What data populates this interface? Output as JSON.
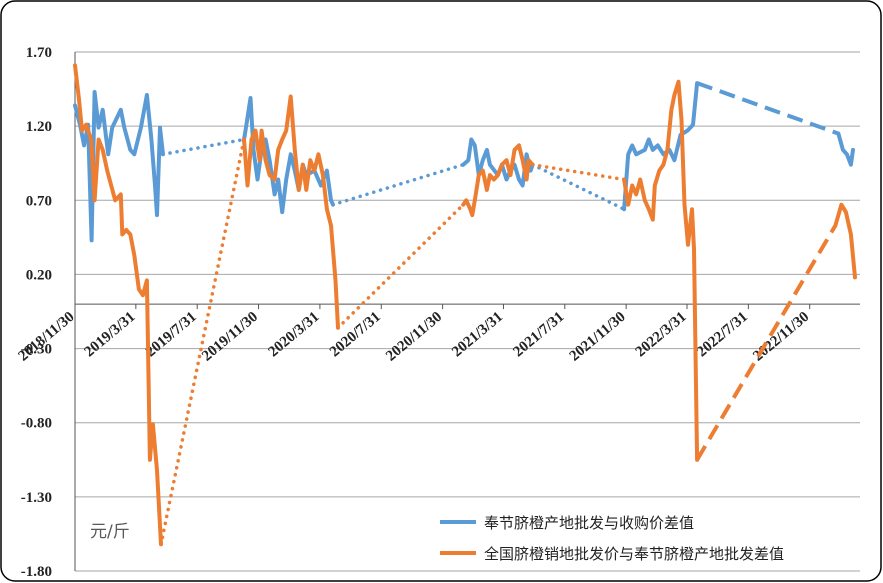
{
  "chart_data": {
    "type": "line",
    "y_label": "元/斤",
    "ylim": [
      -1.8,
      1.7
    ],
    "yticks": [
      {
        "value": 1.7,
        "label": "1.70"
      },
      {
        "value": 1.2,
        "label": "1.20"
      },
      {
        "value": 0.7,
        "label": "0.70"
      },
      {
        "value": 0.2,
        "label": "0.20"
      },
      {
        "value": -0.3,
        "label": "-0.30"
      },
      {
        "value": -0.8,
        "label": "-0.80"
      },
      {
        "value": -1.3,
        "label": "-1.30"
      },
      {
        "value": -1.8,
        "label": "-1.80"
      }
    ],
    "xlim": [
      "2018/11/30",
      "2023/3/10"
    ],
    "xticks": [
      "2018/11/30",
      "2019/3/31",
      "2019/7/31",
      "2019/11/30",
      "2020/3/31",
      "2020/7/31",
      "2020/11/30",
      "2021/3/31",
      "2021/7/31",
      "2021/11/30",
      "2022/3/31",
      "2022/7/31",
      "2022/11/30"
    ],
    "grid": true,
    "legend": "lower right",
    "series": [
      {
        "name": "奉节脐橙产地批发与收购价差值",
        "color": "#5b9bd5",
        "x": [
          "2018/11/30",
          "2018/12/10",
          "2018/12/18",
          "2018/12/26",
          "2019/1/2",
          "2019/1/8",
          "2019/1/16",
          "2019/1/24",
          "2019/2/4",
          "2019/2/12",
          "2019/3/1",
          "2019/3/8",
          "2019/3/20",
          "2019/3/28",
          "2019/4/10",
          "2019/4/22",
          "2019/5/1",
          "2019/5/8",
          "2019/5/12",
          "2019/5/18",
          "2019/5/24",
          "2019/11/1",
          "2019/11/4",
          "2019/11/14",
          "2019/11/20",
          "2019/11/28",
          "2019/12/6",
          "2019/12/14",
          "2019/12/22",
          "2020/1/1",
          "2020/1/8",
          "2020/1/16",
          "2020/1/24",
          "2020/2/2",
          "2020/2/10",
          "2020/2/18",
          "2020/2/26",
          "2020/3/4",
          "2020/3/20",
          "2020/4/2",
          "2020/4/14",
          "2020/4/22",
          "2020/4/26",
          "2021/1/10",
          "2021/1/20",
          "2021/1/26",
          "2021/2/2",
          "2021/2/10",
          "2021/2/18",
          "2021/2/26",
          "2021/3/4",
          "2021/3/20",
          "2021/3/28",
          "2021/4/6",
          "2021/4/14",
          "2021/4/22",
          "2021/5/1",
          "2021/5/8",
          "2021/5/16",
          "2021/5/24",
          "2021/5/28",
          "2021/11/26",
          "2021/12/4",
          "2021/12/12",
          "2021/12/20",
          "2022/1/6",
          "2022/1/14",
          "2022/1/22",
          "2022/2/1",
          "2022/2/12",
          "2022/2/24",
          "2022/3/6",
          "2022/3/18",
          "2022/4/1",
          "2022/4/12",
          "2022/4/20",
          "2023/1/26",
          "2023/2/4",
          "2023/2/12",
          "2023/2/20",
          "2023/2/24"
        ],
        "values": [
          1.34,
          1.21,
          1.07,
          1.21,
          0.43,
          1.43,
          1.19,
          1.31,
          1.01,
          1.19,
          1.31,
          1.19,
          1.04,
          1.01,
          1.19,
          1.41,
          1.11,
          0.8,
          0.6,
          1.19,
          1.01,
          1.11,
          1.17,
          1.39,
          1.04,
          0.84,
          1.04,
          1.11,
          0.97,
          0.74,
          0.84,
          0.62,
          0.84,
          1.01,
          0.9,
          0.77,
          0.94,
          0.87,
          0.9,
          0.8,
          0.9,
          0.7,
          0.67,
          0.94,
          0.97,
          1.11,
          1.07,
          0.87,
          0.97,
          1.04,
          0.94,
          0.87,
          0.94,
          0.84,
          0.9,
          0.94,
          0.84,
          0.8,
          1.01,
          0.9,
          0.94,
          0.64,
          1.01,
          1.07,
          1.01,
          1.04,
          1.11,
          1.04,
          1.07,
          1.01,
          1.04,
          0.97,
          1.14,
          1.17,
          1.21,
          1.49,
          1.15,
          1.04,
          1.01,
          0.94,
          1.04
        ],
        "line_styles": [
          "solid",
          "solid",
          "solid",
          "solid",
          "solid",
          "solid",
          "solid",
          "solid",
          "solid",
          "solid",
          "solid",
          "solid",
          "solid",
          "solid",
          "solid",
          "solid",
          "solid",
          "solid",
          "solid",
          "solid",
          "dotted",
          "solid",
          "solid",
          "solid",
          "solid",
          "solid",
          "solid",
          "solid",
          "solid",
          "solid",
          "solid",
          "solid",
          "solid",
          "solid",
          "solid",
          "solid",
          "solid",
          "solid",
          "solid",
          "solid",
          "solid",
          "solid",
          "dotted",
          "solid",
          "solid",
          "solid",
          "solid",
          "solid",
          "solid",
          "solid",
          "solid",
          "solid",
          "solid",
          "solid",
          "solid",
          "solid",
          "solid",
          "solid",
          "solid",
          "solid",
          "dotted",
          "solid",
          "solid",
          "solid",
          "solid",
          "solid",
          "solid",
          "solid",
          "solid",
          "solid",
          "solid",
          "solid",
          "solid",
          "solid",
          "solid",
          "dashed",
          "solid",
          "solid",
          "solid",
          "solid",
          "solid"
        ]
      },
      {
        "name": "全国脐橙销地批发价与奉节脐橙产地批发差值",
        "color": "#ed7d31",
        "x": [
          "2018/11/30",
          "2018/12/8",
          "2018/12/14",
          "2018/12/22",
          "2019/1/1",
          "2019/1/8",
          "2019/1/16",
          "2019/1/24",
          "2019/2/2",
          "2019/2/10",
          "2019/2/18",
          "2019/3/1",
          "2019/3/4",
          "2019/3/12",
          "2019/3/20",
          "2019/3/28",
          "2019/4/6",
          "2019/4/14",
          "2019/4/22",
          "2019/4/28",
          "2019/5/4",
          "2019/5/12",
          "2019/5/20",
          "2019/11/1",
          "2019/11/8",
          "2019/11/16",
          "2019/11/24",
          "2019/12/2",
          "2019/12/6",
          "2019/12/14",
          "2019/12/22",
          "2020/1/1",
          "2020/1/8",
          "2020/1/16",
          "2020/1/24",
          "2020/2/2",
          "2020/2/10",
          "2020/2/18",
          "2020/2/26",
          "2020/3/4",
          "2020/3/12",
          "2020/3/20",
          "2020/3/28",
          "2020/4/6",
          "2020/4/14",
          "2020/4/22",
          "2020/5/1",
          "2020/5/6",
          "2021/1/10",
          "2021/1/16",
          "2021/1/24",
          "2021/1/28",
          "2021/2/2",
          "2021/2/10",
          "2021/2/18",
          "2021/2/26",
          "2021/3/4",
          "2021/3/12",
          "2021/3/20",
          "2021/3/28",
          "2021/4/6",
          "2021/4/14",
          "2021/4/22",
          "2021/5/1",
          "2021/5/8",
          "2021/5/16",
          "2021/5/20",
          "2021/5/28",
          "2021/11/26",
          "2021/12/4",
          "2021/12/12",
          "2021/12/20",
          "2021/12/28",
          "2022/1/6",
          "2022/1/14",
          "2022/1/22",
          "2022/1/26",
          "2022/2/4",
          "2022/2/12",
          "2022/2/20",
          "2022/2/28",
          "2022/3/6",
          "2022/3/14",
          "2022/3/20",
          "2022/3/26",
          "2022/4/2",
          "2022/4/10",
          "2022/4/14",
          "2022/4/20",
          "2023/1/20",
          "2023/2/1",
          "2023/2/10",
          "2023/2/20",
          "2023/2/28"
        ],
        "values": [
          1.61,
          1.38,
          1.17,
          1.21,
          1.11,
          0.7,
          1.11,
          1.04,
          0.9,
          0.8,
          0.7,
          0.74,
          0.47,
          0.5,
          0.47,
          0.33,
          0.1,
          0.06,
          0.16,
          -1.05,
          -0.81,
          -1.12,
          -1.62,
          1.11,
          0.8,
          1.11,
          1.17,
          0.97,
          1.17,
          0.97,
          0.87,
          0.84,
          1.04,
          1.11,
          1.17,
          1.4,
          1.04,
          0.77,
          0.94,
          0.77,
          0.97,
          0.9,
          1.01,
          0.87,
          0.64,
          0.53,
          0.16,
          -0.16,
          0.67,
          0.7,
          0.64,
          0.6,
          0.7,
          0.87,
          0.9,
          0.77,
          0.87,
          0.84,
          0.87,
          0.94,
          0.97,
          0.87,
          1.04,
          1.07,
          0.97,
          0.84,
          0.97,
          0.94,
          0.84,
          0.67,
          0.8,
          0.74,
          0.84,
          0.7,
          0.64,
          0.57,
          0.8,
          0.9,
          0.94,
          1.04,
          1.31,
          1.41,
          1.5,
          1.24,
          0.67,
          0.4,
          0.64,
          0.37,
          -1.05,
          0.53,
          0.67,
          0.62,
          0.47,
          0.18
        ],
        "line_styles": [
          "solid",
          "solid",
          "solid",
          "solid",
          "solid",
          "solid",
          "solid",
          "solid",
          "solid",
          "solid",
          "solid",
          "solid",
          "solid",
          "solid",
          "solid",
          "solid",
          "solid",
          "solid",
          "solid",
          "solid",
          "solid",
          "solid",
          "dotted",
          "solid",
          "solid",
          "solid",
          "solid",
          "solid",
          "solid",
          "solid",
          "solid",
          "solid",
          "solid",
          "solid",
          "solid",
          "solid",
          "solid",
          "solid",
          "solid",
          "solid",
          "solid",
          "solid",
          "solid",
          "solid",
          "solid",
          "solid",
          "solid",
          "dotted",
          "solid",
          "solid",
          "solid",
          "solid",
          "solid",
          "solid",
          "solid",
          "solid",
          "solid",
          "solid",
          "solid",
          "solid",
          "solid",
          "solid",
          "solid",
          "solid",
          "solid",
          "solid",
          "solid",
          "dotted",
          "solid",
          "solid",
          "solid",
          "solid",
          "solid",
          "solid",
          "solid",
          "solid",
          "solid",
          "solid",
          "solid",
          "solid",
          "solid",
          "solid",
          "solid",
          "solid",
          "solid",
          "solid",
          "solid",
          "solid",
          "dashed",
          "solid",
          "solid",
          "solid",
          "solid",
          "solid"
        ]
      }
    ]
  }
}
